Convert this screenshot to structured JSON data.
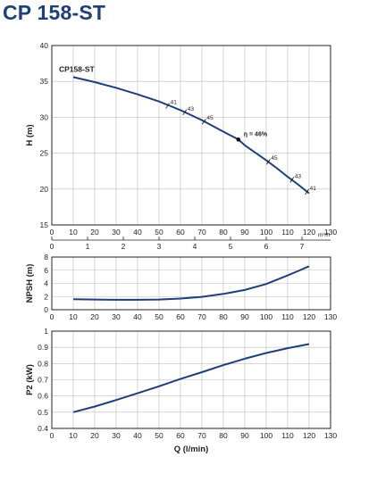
{
  "page": {
    "title": "CP 158-ST"
  },
  "colors": {
    "curve": "#1f3f78",
    "grid": "#bdbdbd",
    "frame": "#222222",
    "title": "#1f3f78"
  },
  "chart_data": [
    {
      "id": "head",
      "type": "line",
      "ylabel": "H (m)",
      "ylim": [
        15,
        40
      ],
      "yticks": [
        15,
        20,
        25,
        30,
        35,
        40
      ],
      "xlim": [
        0,
        130
      ],
      "xticks": [
        0,
        10,
        20,
        30,
        40,
        50,
        60,
        70,
        80,
        90,
        100,
        110,
        120,
        130
      ],
      "grid": true,
      "secondary_axis": {
        "label": "m³/h",
        "ticks": [
          "0",
          "1",
          "2",
          "3",
          "4",
          "5",
          "6",
          "7"
        ],
        "values": [
          0,
          1,
          2,
          3,
          4,
          5,
          6,
          7
        ]
      },
      "series": [
        {
          "name": "CP158-ST",
          "x": [
            10,
            20,
            30,
            40,
            50,
            55,
            60,
            65,
            70,
            80,
            87,
            90,
            100,
            105,
            110,
            115,
            120
          ],
          "y": [
            35.6,
            34.9,
            34.1,
            33.2,
            32.2,
            31.6,
            31.0,
            30.3,
            29.6,
            28.0,
            26.9,
            26.1,
            24.0,
            22.9,
            21.7,
            20.6,
            19.4
          ]
        }
      ],
      "annotations": [
        {
          "text": "41",
          "x": 54,
          "y": 31.6
        },
        {
          "text": "43",
          "x": 62,
          "y": 30.7
        },
        {
          "text": "45",
          "x": 71,
          "y": 29.4
        },
        {
          "text": "η = 46%",
          "x": 87,
          "y": 26.9,
          "bold": true
        },
        {
          "text": "45",
          "x": 101,
          "y": 23.8
        },
        {
          "text": "43",
          "x": 112,
          "y": 21.3
        },
        {
          "text": "41",
          "x": 119,
          "y": 19.6
        }
      ]
    },
    {
      "id": "npsh",
      "type": "line",
      "ylabel": "NPSH (m)",
      "ylim": [
        0,
        8
      ],
      "yticks": [
        0,
        2,
        4,
        6,
        8
      ],
      "xlim": [
        0,
        130
      ],
      "xticks": [
        0,
        10,
        20,
        30,
        40,
        50,
        60,
        70,
        80,
        90,
        100,
        110,
        120,
        130
      ],
      "grid": true,
      "series": [
        {
          "x": [
            10,
            20,
            30,
            40,
            50,
            60,
            70,
            80,
            90,
            100,
            110,
            115,
            120
          ],
          "y": [
            1.6,
            1.55,
            1.5,
            1.5,
            1.55,
            1.7,
            1.95,
            2.4,
            3.0,
            3.9,
            5.2,
            5.9,
            6.6
          ]
        }
      ]
    },
    {
      "id": "power",
      "type": "line",
      "ylabel": "P2 (kW)",
      "xlabel": "Q (l/min)",
      "ylim": [
        0.4,
        1.0
      ],
      "yticks": [
        "0.4",
        "0.5",
        "0.6",
        "0.7",
        "0.8",
        "0.9",
        "1"
      ],
      "xlim": [
        0,
        130
      ],
      "xticks": [
        0,
        10,
        20,
        30,
        40,
        50,
        60,
        70,
        80,
        90,
        100,
        110,
        120,
        130
      ],
      "grid": true,
      "series": [
        {
          "x": [
            10,
            20,
            30,
            40,
            50,
            60,
            70,
            80,
            90,
            100,
            110,
            120
          ],
          "y": [
            0.5,
            0.535,
            0.575,
            0.617,
            0.66,
            0.705,
            0.747,
            0.79,
            0.83,
            0.865,
            0.895,
            0.92
          ]
        }
      ]
    }
  ]
}
